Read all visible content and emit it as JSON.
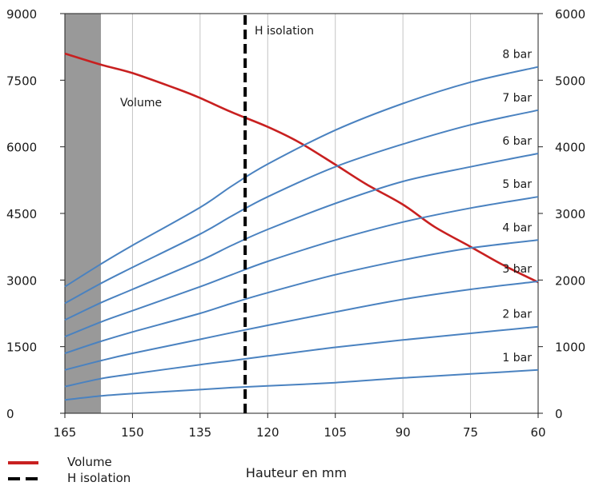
{
  "chart_data": {
    "type": "line",
    "title": "",
    "xlabel": "Hauteur en mm",
    "ylabel_left": "",
    "ylabel_right": "",
    "x_reversed": true,
    "xlim": [
      165,
      60
    ],
    "xticks": [
      165,
      150,
      135,
      120,
      105,
      90,
      75,
      60
    ],
    "ylim_left": [
      0,
      9000
    ],
    "yticks_left": [
      0,
      1500,
      3000,
      4500,
      6000,
      7500,
      9000
    ],
    "ylim_right": [
      0,
      6000
    ],
    "yticks_right": [
      0,
      1000,
      2000,
      3000,
      4000,
      5000,
      6000
    ],
    "grid": "vertical",
    "shaded_region": {
      "x": [
        165,
        157
      ]
    },
    "colors": {
      "volume": "#c82020",
      "pressure": "#4a82c0",
      "isolation": "#000000",
      "shade": "#999999"
    },
    "series": [
      {
        "name": "Volume",
        "axis": "left",
        "color": "#c82020",
        "style": "solid",
        "points": [
          [
            165,
            8100
          ],
          [
            157,
            7850
          ],
          [
            150,
            7660
          ],
          [
            140,
            7300
          ],
          [
            135,
            7100
          ],
          [
            128,
            6780
          ],
          [
            120,
            6450
          ],
          [
            113,
            6100
          ],
          [
            105,
            5600
          ],
          [
            98,
            5150
          ],
          [
            90,
            4700
          ],
          [
            83,
            4200
          ],
          [
            75,
            3750
          ],
          [
            68,
            3350
          ],
          [
            60,
            2950
          ]
        ]
      },
      {
        "name": "H isolation",
        "axis": "left",
        "color": "#000000",
        "style": "dashed",
        "points": [
          [
            125,
            0
          ],
          [
            125,
            9000
          ]
        ]
      },
      {
        "label": "1 bar",
        "axis": "right",
        "points": [
          [
            165,
            200
          ],
          [
            157,
            260
          ],
          [
            150,
            295
          ],
          [
            135,
            355
          ],
          [
            128,
            385
          ],
          [
            120,
            410
          ],
          [
            105,
            460
          ],
          [
            90,
            530
          ],
          [
            75,
            590
          ],
          [
            60,
            650
          ]
        ]
      },
      {
        "label": "2 bar",
        "axis": "right",
        "points": [
          [
            165,
            400
          ],
          [
            157,
            520
          ],
          [
            150,
            590
          ],
          [
            135,
            730
          ],
          [
            128,
            790
          ],
          [
            120,
            860
          ],
          [
            105,
            990
          ],
          [
            90,
            1100
          ],
          [
            75,
            1200
          ],
          [
            60,
            1300
          ]
        ]
      },
      {
        "label": "3 bar",
        "axis": "right",
        "points": [
          [
            165,
            650
          ],
          [
            157,
            790
          ],
          [
            150,
            900
          ],
          [
            135,
            1110
          ],
          [
            128,
            1210
          ],
          [
            120,
            1320
          ],
          [
            105,
            1520
          ],
          [
            90,
            1710
          ],
          [
            75,
            1860
          ],
          [
            60,
            1980
          ]
        ]
      },
      {
        "label": "4 bar",
        "axis": "right",
        "points": [
          [
            165,
            900
          ],
          [
            157,
            1080
          ],
          [
            150,
            1220
          ],
          [
            135,
            1500
          ],
          [
            128,
            1650
          ],
          [
            120,
            1810
          ],
          [
            105,
            2080
          ],
          [
            90,
            2300
          ],
          [
            75,
            2480
          ],
          [
            60,
            2600
          ]
        ]
      },
      {
        "label": "5 bar",
        "axis": "right",
        "points": [
          [
            165,
            1150
          ],
          [
            157,
            1370
          ],
          [
            150,
            1540
          ],
          [
            135,
            1900
          ],
          [
            128,
            2080
          ],
          [
            120,
            2280
          ],
          [
            105,
            2600
          ],
          [
            90,
            2870
          ],
          [
            75,
            3080
          ],
          [
            60,
            3250
          ]
        ]
      },
      {
        "label": "6 bar",
        "axis": "right",
        "points": [
          [
            165,
            1400
          ],
          [
            157,
            1660
          ],
          [
            150,
            1860
          ],
          [
            135,
            2290
          ],
          [
            128,
            2520
          ],
          [
            120,
            2760
          ],
          [
            105,
            3150
          ],
          [
            90,
            3480
          ],
          [
            75,
            3700
          ],
          [
            60,
            3900
          ]
        ]
      },
      {
        "label": "7 bar",
        "axis": "right",
        "points": [
          [
            165,
            1650
          ],
          [
            157,
            1950
          ],
          [
            150,
            2190
          ],
          [
            135,
            2690
          ],
          [
            128,
            2960
          ],
          [
            120,
            3250
          ],
          [
            105,
            3700
          ],
          [
            90,
            4040
          ],
          [
            75,
            4330
          ],
          [
            60,
            4550
          ]
        ]
      },
      {
        "label": "8 bar",
        "axis": "right",
        "points": [
          [
            165,
            1900
          ],
          [
            157,
            2240
          ],
          [
            150,
            2520
          ],
          [
            135,
            3090
          ],
          [
            128,
            3410
          ],
          [
            120,
            3740
          ],
          [
            105,
            4250
          ],
          [
            90,
            4650
          ],
          [
            75,
            4970
          ],
          [
            60,
            5200
          ]
        ]
      }
    ],
    "annotations": {
      "volume": "Volume",
      "isolation": "H isolation"
    },
    "legend": {
      "position": "bottom-left",
      "entries": [
        {
          "label": "Volume",
          "color": "#c82020",
          "style": "solid"
        },
        {
          "label": "H isolation",
          "color": "#000000",
          "style": "dashed"
        }
      ]
    }
  }
}
